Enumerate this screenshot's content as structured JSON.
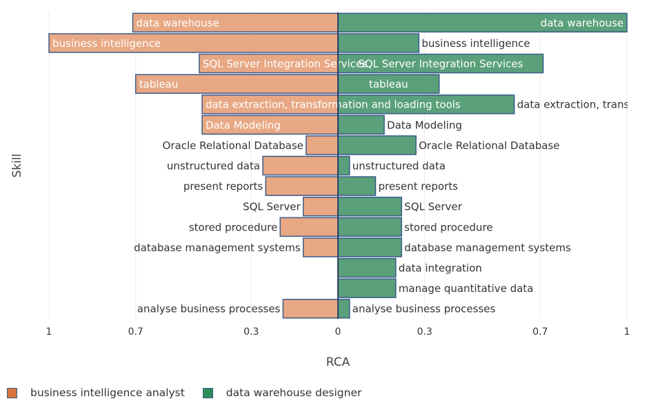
{
  "chart_data": {
    "type": "bar",
    "orientation": "horizontal-diverging",
    "ylabel": "Skill",
    "xlabel": "RCA",
    "xlim": [
      -1,
      1
    ],
    "x_ticks": [
      {
        "value": -1,
        "label": "1"
      },
      {
        "value": -0.7,
        "label": "0.7"
      },
      {
        "value": -0.3,
        "label": "0.3"
      },
      {
        "value": 0,
        "label": "0"
      },
      {
        "value": 0.3,
        "label": "0.3"
      },
      {
        "value": 0.7,
        "label": "0.7"
      },
      {
        "value": 1,
        "label": "1"
      }
    ],
    "categories": [
      "data warehouse",
      "business intelligence",
      "SQL Server Integration Services",
      "tableau",
      "data extraction, transformation and loading tools",
      "Data Modeling",
      "Oracle Relational Database",
      "unstructured data",
      "present reports",
      "SQL Server",
      "stored procedure",
      "database management systems",
      "data integration",
      "manage quantitative data",
      "analyse business processes"
    ],
    "series": [
      {
        "name": "business intelligence analyst",
        "side": "left",
        "color": "#e8a884",
        "legend_color": "#d9733f",
        "values": [
          0.71,
          1.0,
          0.48,
          0.7,
          0.47,
          0.47,
          0.11,
          0.26,
          0.25,
          0.12,
          0.2,
          0.12,
          null,
          null,
          0.19
        ]
      },
      {
        "name": "data warehouse designer",
        "side": "right",
        "color": "#5aa07a",
        "legend_color": "#2e8b57",
        "values": [
          1.0,
          0.28,
          0.71,
          0.35,
          0.61,
          0.16,
          0.27,
          0.04,
          0.13,
          0.22,
          0.22,
          0.22,
          0.2,
          0.2,
          0.04
        ]
      }
    ],
    "legend": {
      "placement": "bottom-left"
    },
    "grid": true
  }
}
